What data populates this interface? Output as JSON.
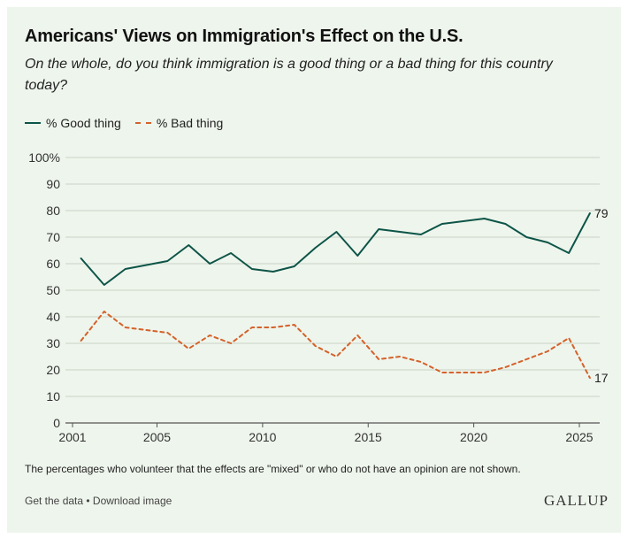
{
  "header": {
    "title": "Americans' Views on Immigration's Effect on the U.S.",
    "subtitle": "On the whole, do you think immigration is a good thing or a bad thing for this country today?"
  },
  "legend": {
    "good_label": "% Good thing",
    "bad_label": "% Bad thing"
  },
  "colors": {
    "good": "#0d5448",
    "bad": "#d4622b",
    "grid": "#c9d3c6",
    "background": "#eef5ec"
  },
  "chart_data": {
    "type": "line",
    "title": "Americans' Views on Immigration's Effect on the U.S.",
    "xlabel": "",
    "ylabel": "",
    "xlim": [
      2001,
      2025
    ],
    "ylim": [
      0,
      100
    ],
    "y_ticks": [
      0,
      10,
      20,
      30,
      40,
      50,
      60,
      70,
      80,
      90,
      100
    ],
    "y_tick_labels": [
      "0",
      "10",
      "20",
      "30",
      "40",
      "50",
      "60",
      "70",
      "80",
      "90",
      "100%"
    ],
    "x_ticks": [
      2001,
      2005,
      2010,
      2015,
      2020,
      2025
    ],
    "x_tick_labels": [
      "2001",
      "2005",
      "2010",
      "2015",
      "2020",
      "2025"
    ],
    "series": [
      {
        "name": "% Good thing",
        "style": "solid",
        "end_label": "79",
        "x": [
          2001.4,
          2002.5,
          2003.5,
          2004.5,
          2005.5,
          2006.5,
          2007.5,
          2008.5,
          2009.5,
          2010.5,
          2011.5,
          2012.5,
          2013.5,
          2014.5,
          2015.5,
          2016.5,
          2017.5,
          2018.5,
          2019.5,
          2020.5,
          2021.5,
          2022.5,
          2023.5,
          2024.5,
          2025.5
        ],
        "values": [
          62,
          52,
          58,
          59.5,
          61,
          67,
          60,
          64,
          58,
          57,
          59,
          66,
          72,
          63,
          73,
          72,
          71,
          75,
          76,
          77,
          75,
          70,
          68,
          64,
          79
        ]
      },
      {
        "name": "% Bad thing",
        "style": "dashed",
        "end_label": "17",
        "x": [
          2001.4,
          2002.5,
          2003.5,
          2004.5,
          2005.5,
          2006.5,
          2007.5,
          2008.5,
          2009.5,
          2010.5,
          2011.5,
          2012.5,
          2013.5,
          2014.5,
          2015.5,
          2016.5,
          2017.5,
          2018.5,
          2019.5,
          2020.5,
          2021.5,
          2022.5,
          2023.5,
          2024.5,
          2025.5
        ],
        "values": [
          31,
          42,
          36,
          35,
          34,
          28,
          33,
          30,
          36,
          36,
          37,
          29,
          25,
          33,
          24,
          25,
          23,
          19,
          19,
          19,
          21,
          24,
          27,
          32,
          17
        ]
      }
    ]
  },
  "footer": {
    "note": "The percentages who volunteer that the effects are \"mixed\" or who do not have an opinion are not shown.",
    "get_data": "Get the data",
    "separator": " • ",
    "download": "Download image",
    "logo": "GALLUP"
  }
}
